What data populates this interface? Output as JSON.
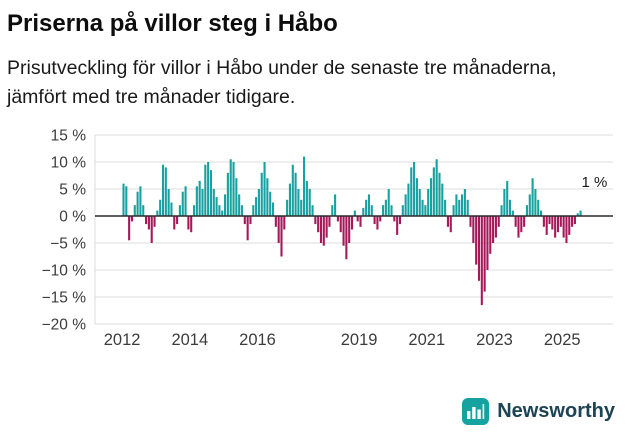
{
  "header": {
    "title": "Priserna på villor steg i Håbo",
    "subtitle": "Prisutveckling för villor i Håbo under de senaste tre månaderna, jämfört med tre månader tidigare."
  },
  "footer": {
    "brand": "Newsworthy"
  },
  "chart_data": {
    "type": "bar",
    "title": "Priserna på villor steg i Håbo",
    "subtitle": "Prisutveckling för villor i Håbo under de senaste tre månaderna, jämfört med tre månader tidigare.",
    "unit": "%",
    "frequency": "monthly",
    "start_year": 2012,
    "start_month": 1,
    "values": [
      6,
      5.5,
      -4.5,
      -1,
      2,
      4.5,
      5.5,
      2,
      -1.5,
      -2.5,
      -5,
      -2,
      1,
      3,
      9.5,
      9,
      5,
      2.5,
      -2.5,
      -1.5,
      2,
      4.5,
      5.5,
      -2.5,
      -3,
      2,
      5.5,
      6.5,
      5,
      9.5,
      10,
      8.5,
      5,
      3.5,
      2,
      1,
      4,
      8,
      10.5,
      10,
      7,
      4,
      2,
      -1.5,
      -4.5,
      -1.5,
      2,
      3.5,
      5,
      8,
      10,
      7,
      4.5,
      2.5,
      -2,
      -5,
      -7.5,
      -2.5,
      3,
      6,
      9.5,
      8,
      5,
      3,
      11,
      6.5,
      5,
      2,
      -1.5,
      -3,
      -5,
      -5.5,
      -4,
      -2,
      2,
      4,
      -1,
      -3,
      -5.5,
      -8,
      -5,
      -2.5,
      1,
      -1,
      -2,
      1.5,
      3,
      4,
      2,
      -1.5,
      -2.5,
      -1,
      2,
      3,
      5,
      2,
      -1,
      -3.5,
      -1.5,
      2,
      4,
      6,
      9,
      10,
      7,
      5,
      3,
      2,
      5,
      7,
      9,
      10.5,
      8,
      6,
      3,
      -2,
      -3,
      2,
      4,
      3,
      4,
      5,
      3,
      -2,
      -5,
      -9,
      -12,
      -16.5,
      -14,
      -10,
      -7,
      -5,
      -4,
      -2,
      2,
      5,
      6.5,
      3,
      1,
      -2,
      -4,
      -3,
      -2,
      2,
      4,
      7,
      5,
      3,
      1,
      -2,
      -3.5,
      -1.5,
      -2.5,
      -4,
      -3,
      -2,
      -4,
      -5,
      -3.5,
      -2,
      -1.5,
      0.5,
      1
    ],
    "x_range": [
      2011.2,
      2026.5
    ],
    "ylim": [
      -20,
      15
    ],
    "yticks": [
      {
        "v": 15,
        "label": "15 %"
      },
      {
        "v": 10,
        "label": "10 %"
      },
      {
        "v": 5,
        "label": "5 %"
      },
      {
        "v": 0,
        "label": "0 %"
      },
      {
        "v": -5,
        "label": "−5 %"
      },
      {
        "v": -10,
        "label": "−10 %"
      },
      {
        "v": -15,
        "label": "−15 %"
      },
      {
        "v": -20,
        "label": "−20 %"
      }
    ],
    "xticks": [
      {
        "v": 2012,
        "label": "2012"
      },
      {
        "v": 2014,
        "label": "2014"
      },
      {
        "v": 2016,
        "label": "2016"
      },
      {
        "v": 2019,
        "label": "2019"
      },
      {
        "v": 2021,
        "label": "2021"
      },
      {
        "v": 2023,
        "label": "2023"
      },
      {
        "v": 2025,
        "label": "2025"
      }
    ],
    "annotation": {
      "text": "1 %",
      "x": 2025.95,
      "y": 5.4
    },
    "colors": {
      "positive": "#18A1A0",
      "negative": "#A5195B",
      "zero_line": "#2b2b2b",
      "grid": "#dcdcdc"
    },
    "legend": false,
    "grid": true
  }
}
